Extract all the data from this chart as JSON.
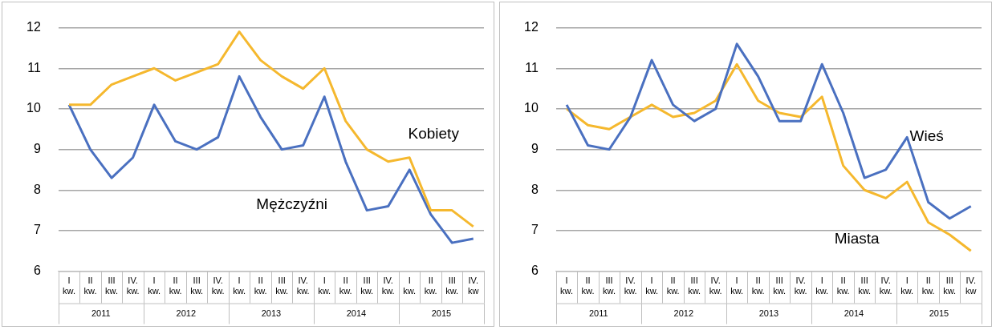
{
  "chart_data": [
    {
      "type": "line",
      "categories": [
        "I kw.",
        "II kw.",
        "III kw.",
        "IV. kw.",
        "I kw.",
        "II kw.",
        "III kw.",
        "IV. kw.",
        "I kw.",
        "II kw.",
        "III kw.",
        "IV. kw.",
        "I kw.",
        "II kw.",
        "III kw.",
        "IV. kw.",
        "I kw.",
        "II kw.",
        "III kw.",
        "IV. kw"
      ],
      "series": [
        {
          "name": "Kobiety",
          "color": "#f5b82e",
          "values": [
            10.1,
            10.1,
            10.6,
            10.8,
            11.0,
            10.7,
            10.9,
            11.1,
            11.9,
            11.2,
            10.8,
            10.5,
            11.0,
            9.7,
            9.0,
            8.7,
            8.8,
            7.5,
            7.5,
            7.1
          ]
        },
        {
          "name": "Mężczyźni",
          "color": "#4a70c0",
          "values": [
            10.1,
            9.0,
            8.3,
            8.8,
            10.1,
            9.2,
            9.0,
            9.3,
            10.8,
            9.8,
            9.0,
            9.1,
            10.3,
            8.7,
            7.5,
            7.6,
            8.5,
            7.4,
            6.7,
            6.8
          ]
        }
      ],
      "annotations": [
        "2011",
        "2012",
        "2013",
        "2014",
        "2015"
      ],
      "ylim": [
        6,
        12
      ],
      "yticks": [
        6,
        7,
        8,
        9,
        10,
        11,
        12
      ],
      "grid": "y",
      "legend": false,
      "marker": "none",
      "line_style": "solid"
    },
    {
      "type": "line",
      "categories": [
        "I kw.",
        "II kw.",
        "III kw.",
        "IV. kw.",
        "I kw.",
        "II kw.",
        "III kw.",
        "IV. kw.",
        "I kw.",
        "II kw.",
        "III kw.",
        "IV. kw.",
        "I kw.",
        "II kw.",
        "III kw.",
        "IV. kw.",
        "I kw.",
        "II kw.",
        "III kw.",
        "IV. kw"
      ],
      "series": [
        {
          "name": "Wieś",
          "color": "#4a70c0",
          "values": [
            10.1,
            9.1,
            9.0,
            9.8,
            11.2,
            10.1,
            9.7,
            10.0,
            11.6,
            10.8,
            9.7,
            9.7,
            11.1,
            9.9,
            8.3,
            8.5,
            9.3,
            7.7,
            7.3,
            7.6
          ]
        },
        {
          "name": "Miasta",
          "color": "#f5b82e",
          "values": [
            10.0,
            9.6,
            9.5,
            9.8,
            10.1,
            9.8,
            9.9,
            10.2,
            11.1,
            10.2,
            9.9,
            9.8,
            10.3,
            8.6,
            8.0,
            7.8,
            8.2,
            7.2,
            6.9,
            6.5
          ]
        }
      ],
      "annotations": [
        "2011",
        "2012",
        "2013",
        "2014",
        "2015"
      ],
      "ylim": [
        6,
        12
      ],
      "yticks": [
        6,
        7,
        8,
        9,
        10,
        11,
        12
      ],
      "grid": "y",
      "legend": false,
      "marker": "none",
      "line_style": "solid"
    }
  ]
}
